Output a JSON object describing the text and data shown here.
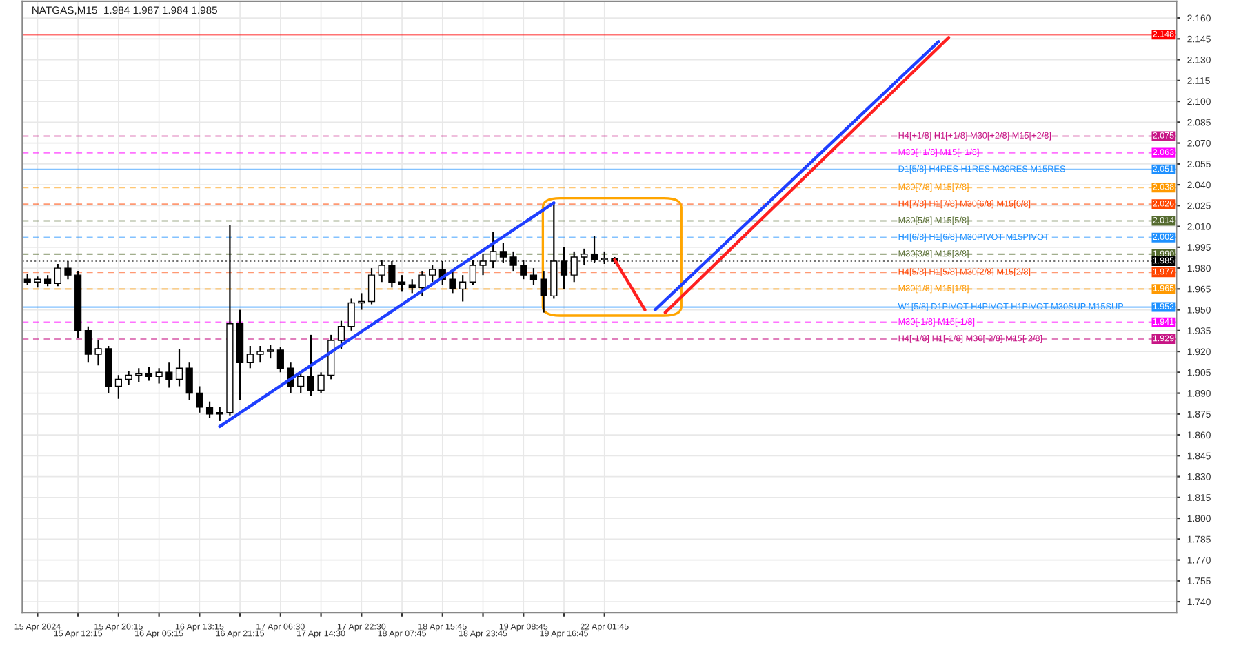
{
  "chart_data": {
    "type": "candlestick",
    "title": "NATGAS,M15  1.984 1.987 1.984 1.985",
    "color": "#000000",
    "categories": [
      null,
      "15 Apr 2024",
      null,
      null,
      null,
      "15 Apr 12:15",
      null,
      null,
      null,
      "15 Apr 20:15",
      null,
      null,
      null,
      "16 Apr 05:15",
      null,
      null,
      null,
      "16 Apr 13:15",
      null,
      null,
      null,
      "16 Apr 21:15",
      null,
      null,
      null,
      "17 Apr 06:30",
      null,
      null,
      null,
      "17 Apr 14:30",
      null,
      null,
      null,
      "17 Apr 22:30",
      null,
      null,
      null,
      "18 Apr 07:45",
      null,
      null,
      null,
      "18 Apr 15:45",
      null,
      null,
      null,
      "18 Apr 23:45",
      null,
      null,
      null,
      "19 Apr 08:45",
      null,
      null,
      null,
      "19 Apr 16:45",
      null,
      null,
      null,
      "22 Apr 01:45",
      null,
      null,
      null,
      null,
      null,
      null,
      null,
      null,
      null,
      null,
      null,
      null,
      null,
      null,
      null,
      null,
      null,
      null,
      null,
      null,
      null,
      null,
      null,
      null,
      null,
      null,
      null,
      null,
      null,
      null,
      null,
      null,
      null,
      null,
      null,
      null,
      null,
      null,
      null,
      null,
      null,
      null,
      null,
      null,
      null,
      null,
      null,
      null,
      null,
      null,
      null,
      null,
      null,
      null,
      null,
      null
    ],
    "ohlc": [
      [
        1.972,
        1.976,
        1.968,
        1.97
      ],
      [
        1.97,
        1.974,
        1.966,
        1.972
      ],
      [
        1.972,
        1.975,
        1.967,
        1.969
      ],
      [
        1.969,
        1.983,
        1.967,
        1.98
      ],
      [
        1.98,
        1.985,
        1.972,
        1.975
      ],
      [
        1.975,
        1.978,
        1.93,
        1.935
      ],
      [
        1.935,
        1.938,
        1.912,
        1.918
      ],
      [
        1.918,
        1.928,
        1.91,
        1.922
      ],
      [
        1.922,
        1.924,
        1.89,
        1.895
      ],
      [
        1.895,
        1.903,
        1.886,
        1.9
      ],
      [
        1.9,
        1.906,
        1.896,
        1.903
      ],
      [
        1.903,
        1.908,
        1.898,
        1.904
      ],
      [
        1.904,
        1.909,
        1.899,
        1.902
      ],
      [
        1.902,
        1.908,
        1.897,
        1.905
      ],
      [
        1.905,
        1.912,
        1.894,
        1.9
      ],
      [
        1.9,
        1.922,
        1.895,
        1.908
      ],
      [
        1.908,
        1.912,
        1.885,
        1.89
      ],
      [
        1.89,
        1.895,
        1.876,
        1.88
      ],
      [
        1.88,
        1.884,
        1.872,
        1.875
      ],
      [
        1.875,
        1.88,
        1.87,
        1.876
      ],
      [
        1.876,
        2.011,
        1.874,
        1.94
      ],
      [
        1.94,
        1.95,
        1.885,
        1.912
      ],
      [
        1.912,
        1.924,
        1.908,
        1.918
      ],
      [
        1.918,
        1.924,
        1.912,
        1.92
      ],
      [
        1.92,
        1.925,
        1.915,
        1.921
      ],
      [
        1.921,
        1.923,
        1.905,
        1.908
      ],
      [
        1.908,
        1.912,
        1.89,
        1.895
      ],
      [
        1.895,
        1.905,
        1.89,
        1.902
      ],
      [
        1.902,
        1.932,
        1.888,
        1.892
      ],
      [
        1.892,
        1.905,
        1.89,
        1.903
      ],
      [
        1.903,
        1.932,
        1.9,
        1.928
      ],
      [
        1.928,
        1.942,
        1.922,
        1.938
      ],
      [
        1.938,
        1.958,
        1.935,
        1.955
      ],
      [
        1.955,
        1.962,
        1.95,
        1.956
      ],
      [
        1.956,
        1.98,
        1.954,
        1.975
      ],
      [
        1.975,
        1.986,
        1.97,
        1.982
      ],
      [
        1.982,
        1.985,
        1.966,
        1.97
      ],
      [
        1.97,
        1.975,
        1.963,
        1.968
      ],
      [
        1.968,
        1.972,
        1.962,
        1.966
      ],
      [
        1.966,
        1.978,
        1.96,
        1.975
      ],
      [
        1.975,
        1.982,
        1.97,
        1.979
      ],
      [
        1.979,
        1.985,
        1.968,
        1.972
      ],
      [
        1.972,
        1.978,
        1.962,
        1.965
      ],
      [
        1.965,
        1.975,
        1.956,
        1.97
      ],
      [
        1.97,
        1.986,
        1.968,
        1.982
      ],
      [
        1.982,
        1.99,
        1.975,
        1.985
      ],
      [
        1.985,
        2.006,
        1.98,
        1.992
      ],
      [
        1.992,
        1.998,
        1.984,
        1.988
      ],
      [
        1.988,
        1.992,
        1.978,
        1.982
      ],
      [
        1.982,
        1.986,
        1.972,
        1.975
      ],
      [
        1.975,
        1.98,
        1.968,
        1.972
      ],
      [
        1.972,
        1.978,
        1.948,
        1.96
      ],
      [
        1.96,
        2.027,
        1.958,
        1.985
      ],
      [
        1.985,
        1.995,
        1.965,
        1.975
      ],
      [
        1.975,
        1.992,
        1.97,
        1.988
      ],
      [
        1.988,
        1.994,
        1.982,
        1.99
      ],
      [
        1.99,
        2.003,
        1.984,
        1.986
      ],
      [
        1.986,
        1.992,
        1.983,
        1.987
      ],
      [
        1.987,
        1.988,
        1.983,
        1.985
      ],
      null,
      null,
      null,
      null,
      null,
      null,
      null,
      null,
      null,
      null,
      null,
      null,
      null,
      null,
      null,
      null,
      null,
      null,
      null,
      null,
      null,
      null,
      null,
      null,
      null,
      null,
      null,
      null,
      null,
      null,
      null,
      null,
      null,
      null,
      null,
      null,
      null,
      null,
      null,
      null,
      null,
      null,
      null,
      null,
      null,
      null,
      null,
      null,
      null,
      null,
      null,
      null,
      null,
      null,
      null
    ],
    "series": [
      {
        "type": "line",
        "color": "#1f3fff",
        "values": [
          null,
          null,
          null,
          null,
          null,
          null,
          null,
          null,
          null,
          null,
          null,
          null,
          null,
          null,
          null,
          null,
          null,
          null,
          null,
          1.866,
          null,
          null,
          null,
          null,
          null,
          null,
          null,
          null,
          null,
          null,
          null,
          null,
          null,
          null,
          null,
          null,
          null,
          null,
          null,
          null,
          null,
          null,
          null,
          null,
          null,
          null,
          null,
          null,
          null,
          null,
          null,
          null,
          2.027,
          null,
          null,
          null,
          null,
          null,
          null,
          null,
          null,
          null,
          null,
          null,
          null,
          null,
          null,
          null,
          null,
          null,
          null,
          null,
          null,
          null,
          null,
          null,
          null,
          null,
          null,
          null,
          null,
          null,
          null,
          null,
          null,
          null,
          null,
          null,
          null,
          null,
          null,
          null,
          null,
          null,
          null,
          null,
          null,
          null,
          null,
          null,
          null,
          null,
          null,
          null,
          null,
          null,
          null,
          null,
          null,
          null,
          null,
          null,
          null,
          null
        ]
      },
      {
        "type": "line",
        "color": "#ff2020",
        "values": [
          null,
          null,
          null,
          null,
          null,
          null,
          null,
          null,
          null,
          null,
          null,
          null,
          null,
          null,
          null,
          null,
          null,
          null,
          null,
          null,
          null,
          null,
          null,
          null,
          null,
          null,
          null,
          null,
          null,
          null,
          null,
          null,
          null,
          null,
          null,
          null,
          null,
          null,
          null,
          null,
          null,
          null,
          null,
          null,
          null,
          null,
          null,
          null,
          null,
          null,
          null,
          null,
          null,
          null,
          null,
          null,
          null,
          null,
          1.986,
          null,
          null,
          1.95,
          null,
          null,
          null,
          null,
          null,
          null,
          null,
          null,
          null,
          null,
          null,
          null,
          null,
          null,
          null,
          null,
          null,
          null,
          null,
          null,
          null,
          null,
          null,
          null,
          null,
          null,
          null,
          null,
          null,
          null,
          null,
          null,
          null,
          null,
          null,
          null,
          null,
          null,
          null,
          null,
          null,
          null,
          null,
          null,
          null,
          null,
          null,
          null,
          null,
          null,
          null,
          null
        ]
      },
      {
        "type": "line",
        "color": "#1f3fff",
        "values": [
          null,
          null,
          null,
          null,
          null,
          null,
          null,
          null,
          null,
          null,
          null,
          null,
          null,
          null,
          null,
          null,
          null,
          null,
          null,
          null,
          null,
          null,
          null,
          null,
          null,
          null,
          null,
          null,
          null,
          null,
          null,
          null,
          null,
          null,
          null,
          null,
          null,
          null,
          null,
          null,
          null,
          null,
          null,
          null,
          null,
          null,
          null,
          null,
          null,
          null,
          null,
          null,
          null,
          null,
          null,
          null,
          null,
          null,
          null,
          null,
          null,
          null,
          1.95,
          null,
          null,
          null,
          null,
          null,
          null,
          null,
          null,
          null,
          null,
          null,
          null,
          null,
          null,
          null,
          null,
          null,
          null,
          null,
          null,
          null,
          null,
          null,
          null,
          null,
          null,
          null,
          2.143,
          null,
          null,
          null,
          null,
          null,
          null,
          null,
          null,
          null,
          null,
          null,
          null,
          null,
          null,
          null,
          null,
          null,
          null,
          null,
          null,
          null,
          null,
          null
        ]
      },
      {
        "type": "line",
        "color": "#ff2020",
        "values": [
          null,
          null,
          null,
          null,
          null,
          null,
          null,
          null,
          null,
          null,
          null,
          null,
          null,
          null,
          null,
          null,
          null,
          null,
          null,
          null,
          null,
          null,
          null,
          null,
          null,
          null,
          null,
          null,
          null,
          null,
          null,
          null,
          null,
          null,
          null,
          null,
          null,
          null,
          null,
          null,
          null,
          null,
          null,
          null,
          null,
          null,
          null,
          null,
          null,
          null,
          null,
          null,
          null,
          null,
          null,
          null,
          null,
          null,
          null,
          null,
          null,
          null,
          null,
          1.948,
          null,
          null,
          null,
          null,
          null,
          null,
          null,
          null,
          null,
          null,
          null,
          null,
          null,
          null,
          null,
          null,
          null,
          null,
          null,
          null,
          null,
          null,
          null,
          null,
          null,
          null,
          null,
          2.146,
          null,
          null,
          null,
          null,
          null,
          null,
          null,
          null,
          null,
          null,
          null,
          null,
          null,
          null,
          null,
          null,
          null,
          null,
          null,
          null,
          null,
          null
        ]
      }
    ],
    "ref_lines": [
      {
        "axis": "y",
        "value": 2.148,
        "label": "2.148",
        "color": "#ff0000",
        "line_style": "solid"
      },
      {
        "axis": "y",
        "value": 2.075,
        "label": "2.075",
        "color": "#c71585",
        "line_style": "dashed"
      },
      {
        "axis": "y",
        "value": 2.063,
        "label": "2.063",
        "color": "#ff00ff",
        "line_style": "dashed"
      },
      {
        "axis": "y",
        "value": 2.051,
        "label": "2.051",
        "color": "#1e90ff",
        "line_style": "solid"
      },
      {
        "axis": "y",
        "value": 2.038,
        "label": "2.038",
        "color": "#ff9900",
        "line_style": "dashed"
      },
      {
        "axis": "y",
        "value": 2.026,
        "label": "2.026",
        "color": "#ff4500",
        "line_style": "dashed"
      },
      {
        "axis": "y",
        "value": 2.014,
        "label": "2.014",
        "color": "#556b2f",
        "line_style": "dashed"
      },
      {
        "axis": "y",
        "value": 2.002,
        "label": "2.002",
        "color": "#1e90ff",
        "line_style": "dashed"
      },
      {
        "axis": "y",
        "value": 1.99,
        "label": "1.990",
        "color": "#556b2f",
        "line_style": "dashed"
      },
      {
        "axis": "y",
        "value": 1.985,
        "label": "1.985",
        "color": "#000000",
        "line_style": "dotted"
      },
      {
        "axis": "y",
        "value": 1.977,
        "label": "1.977",
        "color": "#ff4500",
        "line_style": "dashed"
      },
      {
        "axis": "y",
        "value": 1.965,
        "label": "1.965",
        "color": "#ff9900",
        "line_style": "dashed"
      },
      {
        "axis": "y",
        "value": 1.952,
        "label": "1.952",
        "color": "#1e90ff",
        "line_style": "solid"
      },
      {
        "axis": "y",
        "value": 1.941,
        "label": "1.941",
        "color": "#ff00ff",
        "line_style": "dashed"
      },
      {
        "axis": "y",
        "value": 1.929,
        "label": "1.929",
        "color": "#c71585",
        "line_style": "dashed"
      }
    ],
    "annotations": [
      {
        "text": "H4[+1/8] H1[+1/8] M30[+2/8] M15[+2/8]",
        "y": 2.075
      },
      {
        "text": "M30[+1/8] M15[+1/8]",
        "y": 2.063
      },
      {
        "text": "D1[5/8] H4RES H1RES M30RES M15RES",
        "y": 2.051
      },
      {
        "text": "M30[7/8] M15[7/8]",
        "y": 2.038
      },
      {
        "text": "H4[7/8] H1[7/8] M30[6/8] M15[6/8]",
        "y": 2.026
      },
      {
        "text": "M30[5/8] M15[5/8]",
        "y": 2.014
      },
      {
        "text": "H4[6/8] H1[6/8] M30PIVOT M15PIVOT",
        "y": 2.002
      },
      {
        "text": "M30[3/8] M15[3/8]",
        "y": 1.99
      },
      {
        "text": "H4[5/8] H1[5/8] M30[2/8] M15[2/8]",
        "y": 1.977
      },
      {
        "text": "M30[1/8] M15[1/8]",
        "y": 1.965
      },
      {
        "text": "W1[5/8] D1PIVOT H4PIVOT H1PIVOT M30SUP M15SUP",
        "y": 1.952
      },
      {
        "text": "M30[-1/8] M15[-1/8]",
        "y": 1.941
      },
      {
        "text": "H4[-1/8] H1[-1/8] M30[-2/8] M15[-2/8]",
        "y": 1.929
      }
    ],
    "ylim": [
      1.732,
      2.172
    ],
    "yticks": [
      {
        "value": 1.74,
        "label": "1.740"
      },
      1.755,
      {
        "value": 1.77,
        "label": "1.770"
      },
      1.785,
      {
        "value": 1.8,
        "label": "1.800"
      },
      1.815,
      {
        "value": 1.83,
        "label": "1.830"
      },
      1.845,
      {
        "value": 1.86,
        "label": "1.860"
      },
      1.875,
      {
        "value": 1.89,
        "label": "1.890"
      },
      1.905,
      {
        "value": 1.92,
        "label": "1.920"
      },
      1.935,
      {
        "value": 1.95,
        "label": "1.950"
      },
      1.965,
      {
        "value": 1.98,
        "label": "1.980"
      },
      1.995,
      {
        "value": 2.01,
        "label": "2.010"
      },
      2.025,
      {
        "value": 2.04,
        "label": "2.040"
      },
      2.055,
      {
        "value": 2.07,
        "label": "2.070"
      },
      2.085,
      {
        "value": 2.1,
        "label": "2.100"
      },
      2.115,
      {
        "value": 2.13,
        "label": "2.130"
      },
      2.145,
      {
        "value": 2.16,
        "label": "2.160"
      }
    ],
    "grid": true
  }
}
